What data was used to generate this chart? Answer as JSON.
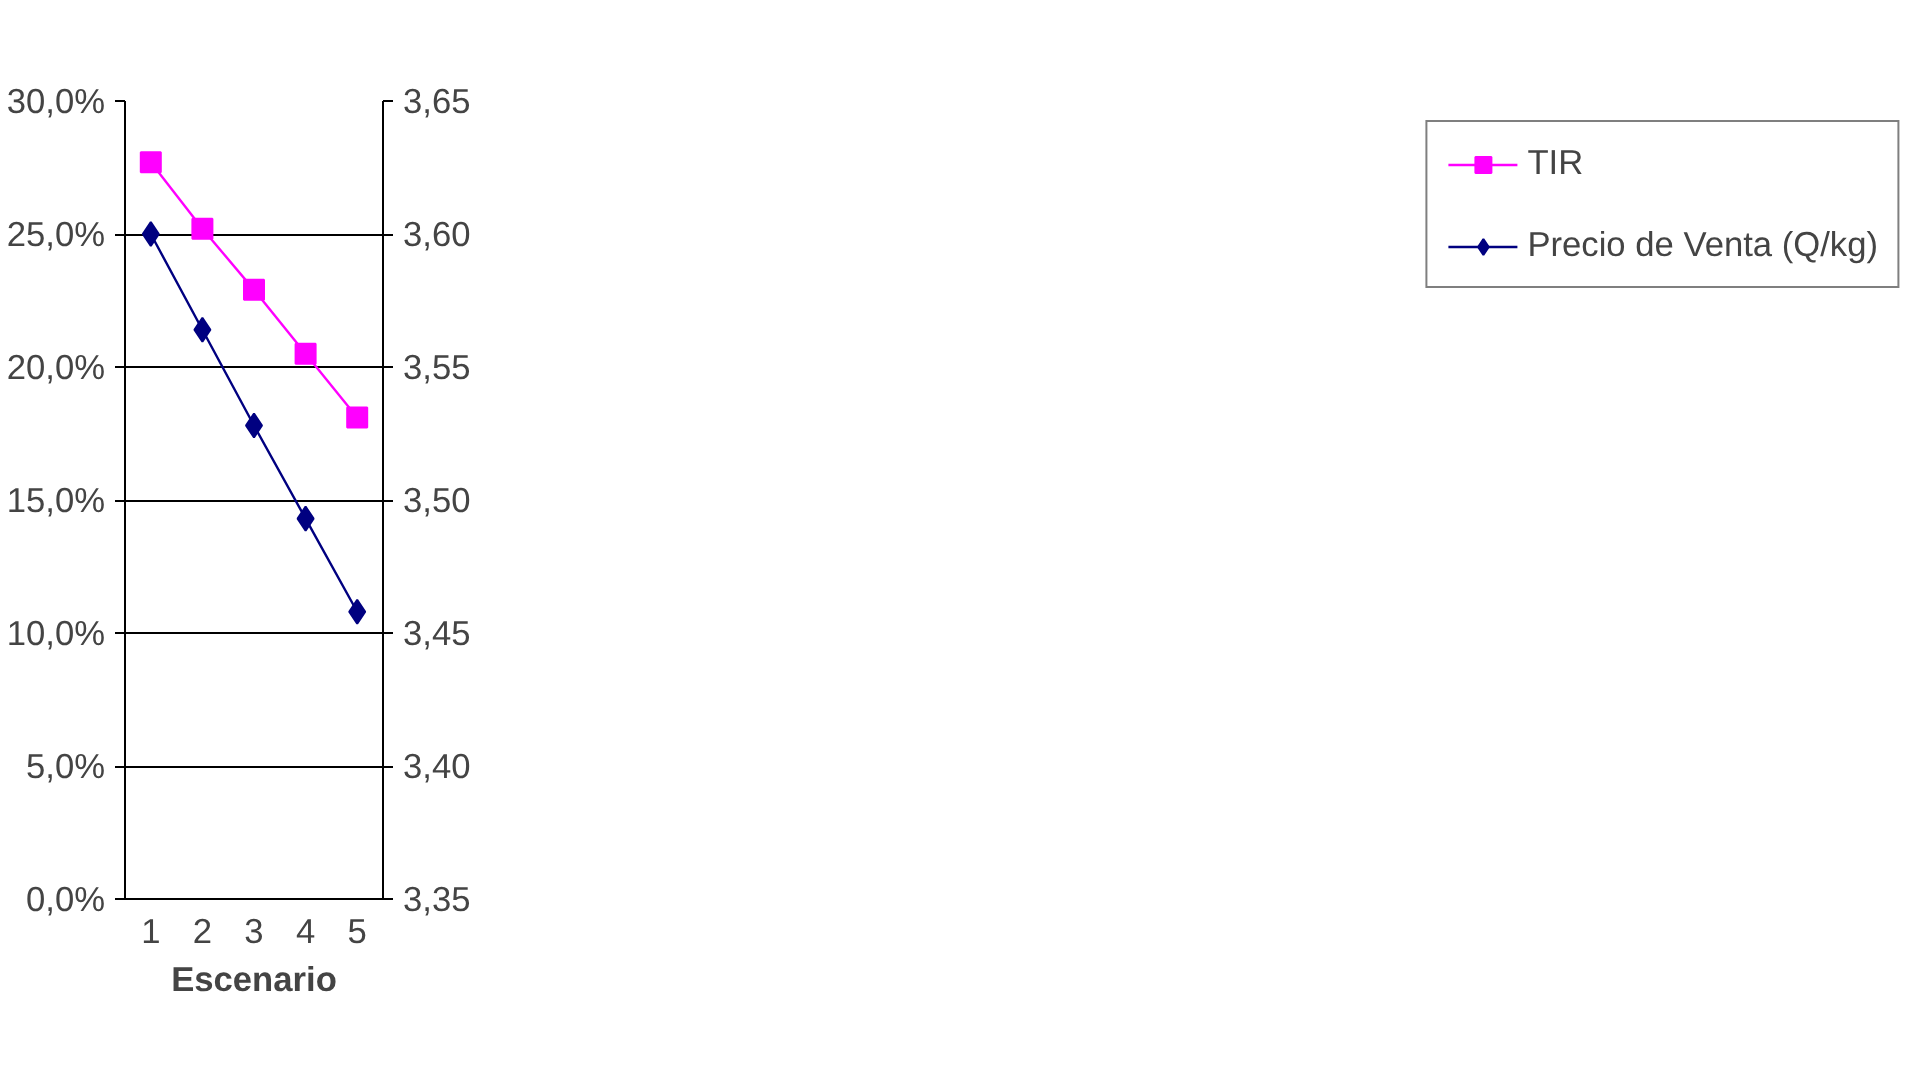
{
  "chart_data": {
    "type": "line",
    "xlabel": "Escenario",
    "categories": [
      "1",
      "2",
      "3",
      "4",
      "5"
    ],
    "series": [
      {
        "name": "TIR",
        "color": "#ff00ff",
        "marker": "square",
        "values": [
          27.7,
          25.2,
          22.9,
          20.5,
          18.1
        ]
      },
      {
        "name": "Precio de Venta (Q/kg)",
        "color": "#000080",
        "marker": "diamond",
        "axis": "y2",
        "values": [
          3.6,
          3.564,
          3.528,
          3.493,
          3.458
        ]
      }
    ],
    "ylim": [
      0,
      30
    ],
    "yticks": [
      {
        "value": 0,
        "label": "0,0%"
      },
      {
        "value": 5,
        "label": "5,0%"
      },
      {
        "value": 10,
        "label": "10,0%"
      },
      {
        "value": 15,
        "label": "15,0%"
      },
      {
        "value": 20,
        "label": "20,0%"
      },
      {
        "value": 25,
        "label": "25,0%"
      },
      {
        "value": 30,
        "label": "30,0%"
      }
    ],
    "y2lim": [
      3.35,
      3.65
    ],
    "y2ticks": [
      {
        "value": 3.35,
        "label": "3,35"
      },
      {
        "value": 3.4,
        "label": "3,40"
      },
      {
        "value": 3.45,
        "label": "3,45"
      },
      {
        "value": 3.5,
        "label": "3,50"
      },
      {
        "value": 3.55,
        "label": "3,55"
      },
      {
        "value": 3.6,
        "label": "3,60"
      },
      {
        "value": 3.65,
        "label": "3,65"
      }
    ],
    "grid": "y",
    "legend": "right",
    "line_style": "solid"
  }
}
